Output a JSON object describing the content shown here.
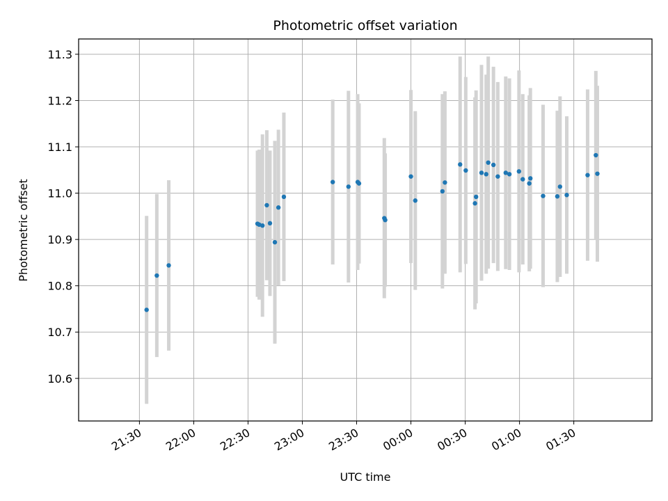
{
  "chart_data": {
    "type": "scatter",
    "title": "Photometric offset variation",
    "xlabel": "UTC time",
    "ylabel": "Photometric offset",
    "x_unit": "hours relative to 00:00 UTC",
    "xlim": [
      -3.06,
      2.22
    ],
    "ylim": [
      10.508,
      11.333
    ],
    "grid": true,
    "x_ticks": [
      {
        "value": -2.5,
        "label": "21:30"
      },
      {
        "value": -2.0,
        "label": "22:00"
      },
      {
        "value": -1.5,
        "label": "22:30"
      },
      {
        "value": -1.0,
        "label": "23:00"
      },
      {
        "value": -0.5,
        "label": "23:30"
      },
      {
        "value": 0.0,
        "label": "00:00"
      },
      {
        "value": 0.5,
        "label": "00:30"
      },
      {
        "value": 1.0,
        "label": "01:00"
      },
      {
        "value": 1.5,
        "label": "01:30"
      }
    ],
    "y_ticks": [
      {
        "value": 10.6,
        "label": "10.6"
      },
      {
        "value": 10.7,
        "label": "10.7"
      },
      {
        "value": 10.8,
        "label": "10.8"
      },
      {
        "value": 10.9,
        "label": "10.9"
      },
      {
        "value": 11.0,
        "label": "11.0"
      },
      {
        "value": 11.1,
        "label": "11.1"
      },
      {
        "value": 11.2,
        "label": "11.2"
      },
      {
        "value": 11.3,
        "label": "11.3"
      }
    ],
    "point_color": "#1f77b4",
    "errorbar_color": "#d3d3d3",
    "points": [
      {
        "x": -2.434,
        "y": 10.748,
        "err": 0.203
      },
      {
        "x": -2.34,
        "y": 10.822,
        "err": 0.176
      },
      {
        "x": -2.23,
        "y": 10.844,
        "err": 0.184
      },
      {
        "x": -1.413,
        "y": 10.934,
        "err": 0.158
      },
      {
        "x": -1.397,
        "y": 10.932,
        "err": 0.162
      },
      {
        "x": -1.367,
        "y": 10.93,
        "err": 0.197
      },
      {
        "x": -1.327,
        "y": 10.974,
        "err": 0.162
      },
      {
        "x": -1.298,
        "y": 10.935,
        "err": 0.157
      },
      {
        "x": -1.253,
        "y": 10.894,
        "err": 0.219
      },
      {
        "x": -1.22,
        "y": 10.969,
        "err": 0.168
      },
      {
        "x": -1.17,
        "y": 10.992,
        "err": 0.182
      },
      {
        "x": -0.72,
        "y": 11.024,
        "err": 0.178
      },
      {
        "x": -0.575,
        "y": 11.014,
        "err": 0.207
      },
      {
        "x": -0.49,
        "y": 11.024,
        "err": 0.19
      },
      {
        "x": -0.478,
        "y": 11.021,
        "err": 0.173
      },
      {
        "x": -0.245,
        "y": 10.946,
        "err": 0.173
      },
      {
        "x": -0.237,
        "y": 10.942,
        "err": 0.144
      },
      {
        "x": 0.0,
        "y": 11.036,
        "err": 0.187
      },
      {
        "x": 0.04,
        "y": 10.984,
        "err": 0.193
      },
      {
        "x": 0.29,
        "y": 11.004,
        "err": 0.21
      },
      {
        "x": 0.313,
        "y": 11.023,
        "err": 0.197
      },
      {
        "x": 0.453,
        "y": 11.062,
        "err": 0.233
      },
      {
        "x": 0.505,
        "y": 11.049,
        "err": 0.202
      },
      {
        "x": 0.59,
        "y": 10.978,
        "err": 0.229
      },
      {
        "x": 0.6,
        "y": 10.992,
        "err": 0.23
      },
      {
        "x": 0.65,
        "y": 11.044,
        "err": 0.233
      },
      {
        "x": 0.693,
        "y": 11.041,
        "err": 0.215
      },
      {
        "x": 0.712,
        "y": 11.066,
        "err": 0.229
      },
      {
        "x": 0.76,
        "y": 11.061,
        "err": 0.212
      },
      {
        "x": 0.8,
        "y": 11.036,
        "err": 0.204
      },
      {
        "x": 0.873,
        "y": 11.044,
        "err": 0.208
      },
      {
        "x": 0.907,
        "y": 11.041,
        "err": 0.207
      },
      {
        "x": 0.995,
        "y": 11.047,
        "err": 0.218
      },
      {
        "x": 1.03,
        "y": 11.03,
        "err": 0.184
      },
      {
        "x": 1.09,
        "y": 11.021,
        "err": 0.19
      },
      {
        "x": 1.1,
        "y": 11.032,
        "err": 0.195
      },
      {
        "x": 1.217,
        "y": 10.994,
        "err": 0.197
      },
      {
        "x": 1.348,
        "y": 10.993,
        "err": 0.185
      },
      {
        "x": 1.373,
        "y": 11.014,
        "err": 0.195
      },
      {
        "x": 1.435,
        "y": 10.996,
        "err": 0.17
      },
      {
        "x": 1.627,
        "y": 11.039,
        "err": 0.185
      },
      {
        "x": 1.703,
        "y": 11.082,
        "err": 0.182
      },
      {
        "x": 1.717,
        "y": 11.042,
        "err": 0.19
      }
    ]
  }
}
